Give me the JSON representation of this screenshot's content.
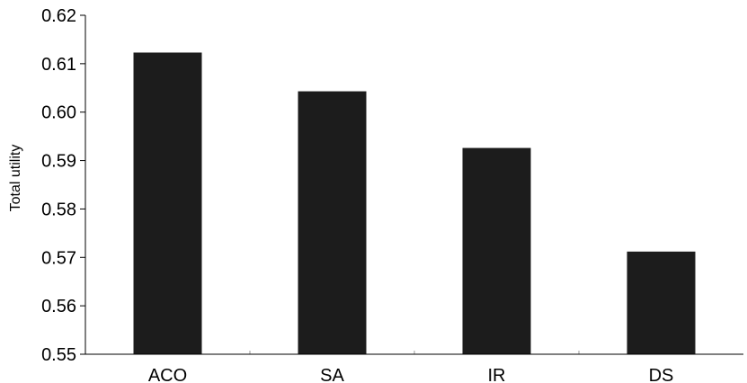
{
  "chart_data": {
    "type": "bar",
    "title": "",
    "xlabel": "",
    "ylabel": "Total utility",
    "categories": [
      "ACO",
      "SA",
      "IR",
      "DS"
    ],
    "values": [
      0.6123,
      0.6043,
      0.5926,
      0.5712
    ],
    "ylim": [
      0.55,
      0.62
    ],
    "yticks": [
      "0.55",
      "0.56",
      "0.57",
      "0.58",
      "0.59",
      "0.60",
      "0.61",
      "0.62"
    ],
    "bar_color": "#1c1c1c",
    "axis_color": "#000000",
    "grid": false,
    "legend": "none"
  }
}
